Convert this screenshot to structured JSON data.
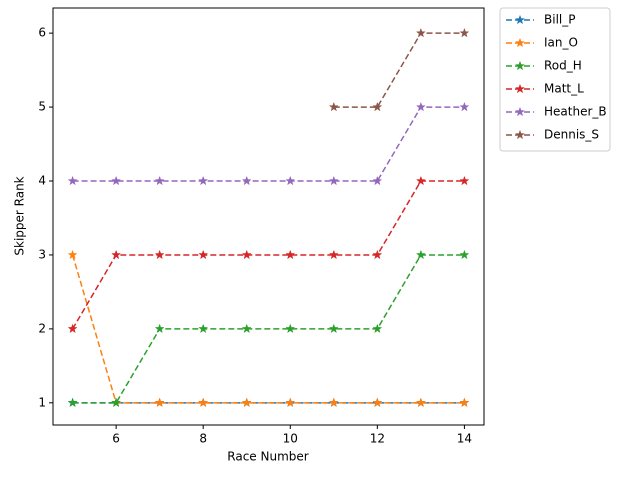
{
  "chart_data": {
    "type": "line",
    "x_label": "Race Number",
    "y_label": "Skipper Rank",
    "x": [
      5,
      6,
      7,
      8,
      9,
      10,
      11,
      12,
      13,
      14
    ],
    "series": [
      {
        "name": "Bill_P",
        "color": "#1f77b4",
        "values": [
          1,
          1,
          1,
          1,
          1,
          1,
          1,
          1,
          1,
          1
        ]
      },
      {
        "name": "Ian_O",
        "color": "#ff7f0e",
        "values": [
          3,
          1,
          1,
          1,
          1,
          1,
          1,
          1,
          1,
          1
        ]
      },
      {
        "name": "Rod_H",
        "color": "#2ca02c",
        "values": [
          1,
          1,
          2,
          2,
          2,
          2,
          2,
          2,
          3,
          3
        ]
      },
      {
        "name": "Matt_L",
        "color": "#d62728",
        "values": [
          2,
          3,
          3,
          3,
          3,
          3,
          3,
          3,
          4,
          4
        ]
      },
      {
        "name": "Heather_B",
        "color": "#9467bd",
        "values": [
          4,
          4,
          4,
          4,
          4,
          4,
          4,
          4,
          5,
          5
        ]
      },
      {
        "name": "Dennis_S",
        "color": "#8c564b",
        "values": [
          null,
          null,
          null,
          null,
          null,
          null,
          5,
          5,
          6,
          6
        ]
      }
    ],
    "xlim": [
      4.55,
      14.45
    ],
    "xticks": [
      6,
      8,
      10,
      12,
      14
    ],
    "ylim": [
      0.7,
      6.34
    ],
    "yticks": [
      1,
      2,
      3,
      4,
      5,
      6
    ],
    "line_style": "dashed",
    "marker": "star",
    "grid": false,
    "legend": "outside right"
  }
}
